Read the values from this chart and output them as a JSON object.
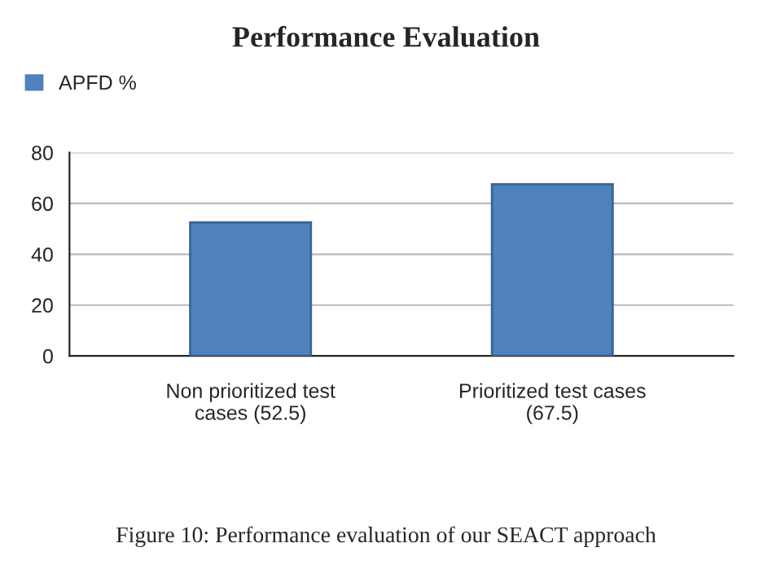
{
  "chart_data": {
    "type": "bar",
    "title": "Performance Evaluation",
    "categories": [
      "Non prioritized test\ncases (52.5)",
      "Prioritized test cases\n(67.5)"
    ],
    "series": [
      {
        "name": "APFD %",
        "color": "#4f81bd",
        "values": [
          52.5,
          67.5
        ]
      }
    ],
    "ylim": [
      0,
      80
    ],
    "yticks": [
      0,
      20,
      40,
      60,
      80
    ],
    "grid": "y",
    "legend": "top left",
    "annotations": [
      "Figure 10: Performance evaluation of our SEACT approach"
    ]
  }
}
